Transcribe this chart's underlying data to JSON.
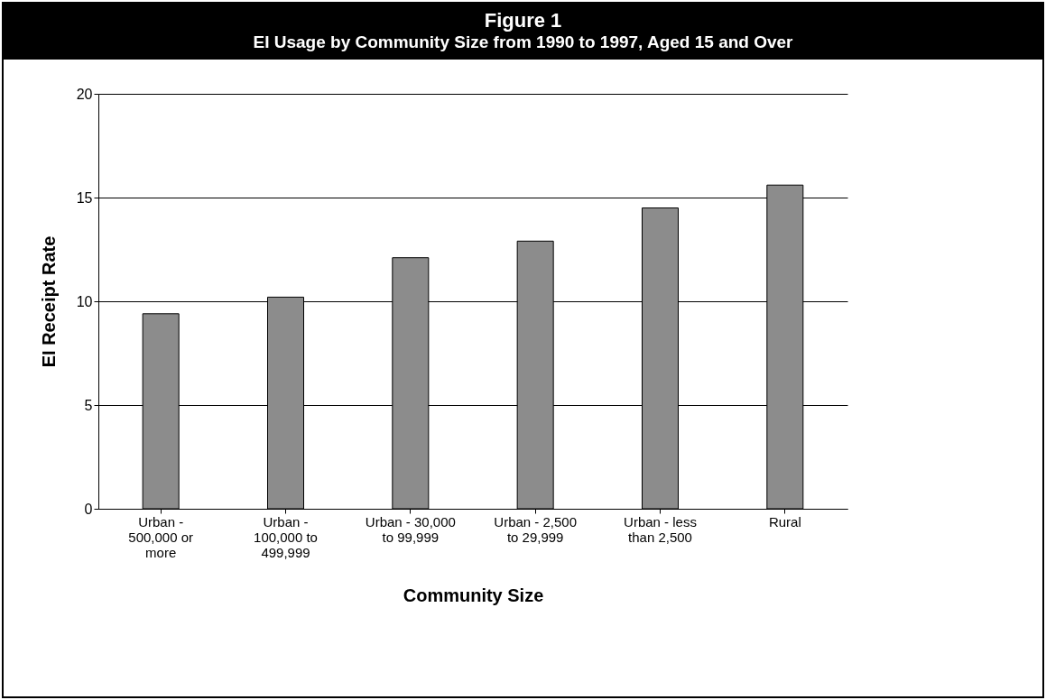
{
  "chart_data": {
    "type": "bar",
    "title": "Figure 1",
    "subtitle": "EI Usage by Community Size from 1990 to 1997, Aged 15 and Over",
    "xlabel": "Community Size",
    "ylabel": "EI Receipt Rate",
    "categories": [
      "Urban - 500,000 or more",
      "Urban - 100,000 to 499,999",
      "Urban - 30,000 to 99,999",
      "Urban - 2,500 to 29,999",
      "Urban - less than 2,500",
      "Rural"
    ],
    "values": [
      9.4,
      10.2,
      12.1,
      12.9,
      14.5,
      15.6
    ],
    "color": "#8c8c8c",
    "ylim": [
      0,
      20
    ],
    "yticks": [
      0,
      5,
      10,
      15,
      20
    ],
    "grid": "y"
  }
}
